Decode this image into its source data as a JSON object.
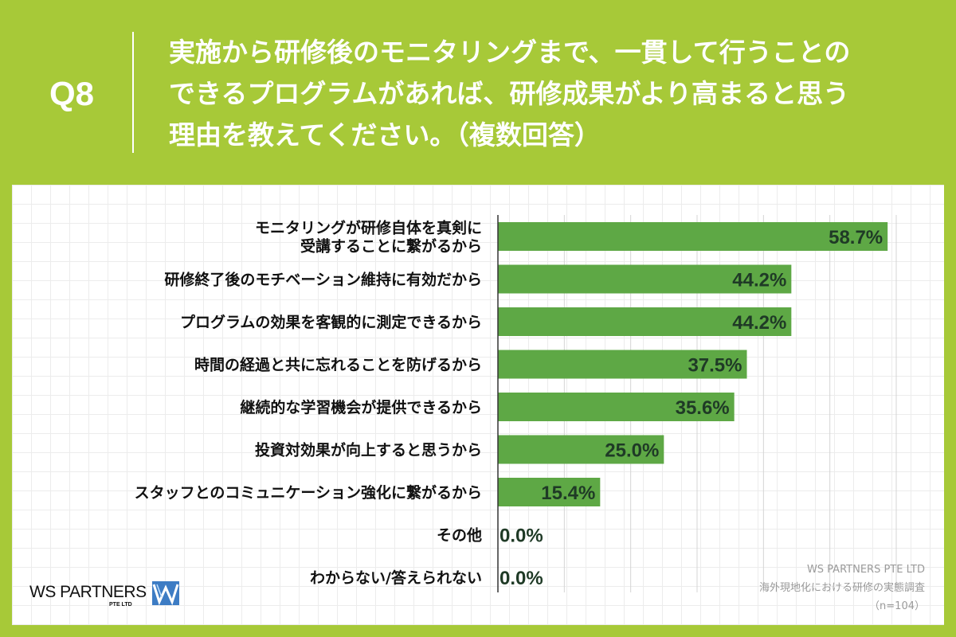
{
  "question": {
    "number": "Q8",
    "lines": [
      "実施から研修後のモニタリングまで、一貫して行うことの",
      "できるプログラムがあれば、研修成果がより高まると思う",
      "理由を教えてください。（複数回答）"
    ]
  },
  "chart_data": {
    "type": "bar",
    "orientation": "horizontal",
    "categories": [
      [
        "モニタリングが研修自体を真剣に",
        "受講することに繋がるから"
      ],
      [
        "研修終了後のモチベーション維持に有効だから"
      ],
      [
        "プログラムの効果を客観的に測定できるから"
      ],
      [
        "時間の経過と共に忘れることを防げるから"
      ],
      [
        "継続的な学習機会が提供できるから"
      ],
      [
        "投資対効果が向上すると思うから"
      ],
      [
        "スタッフとのコミュニケーション強化に繋がるから"
      ],
      [
        "その他"
      ],
      [
        "わからない/答えられない"
      ]
    ],
    "values": [
      58.7,
      44.2,
      44.2,
      37.5,
      35.6,
      25.0,
      15.4,
      0.0,
      0.0
    ],
    "value_labels": [
      "58.7%",
      "44.2%",
      "44.2%",
      "37.5%",
      "35.6%",
      "25.0%",
      "15.4%",
      "0.0%",
      "0.0%"
    ],
    "xlim": [
      0,
      60
    ],
    "grid": true,
    "bar_color": "#5ea845"
  },
  "source": {
    "company": "WS PARTNERS PTE LTD",
    "survey": "海外現地化における研修の実態調査",
    "n": "（n=104）"
  },
  "logo": {
    "text": "WS PARTNERS",
    "sub": "PTE LTD"
  },
  "colors": {
    "background": "#a7c938",
    "bar": "#5ea845",
    "value_text": "#1f3a26"
  }
}
